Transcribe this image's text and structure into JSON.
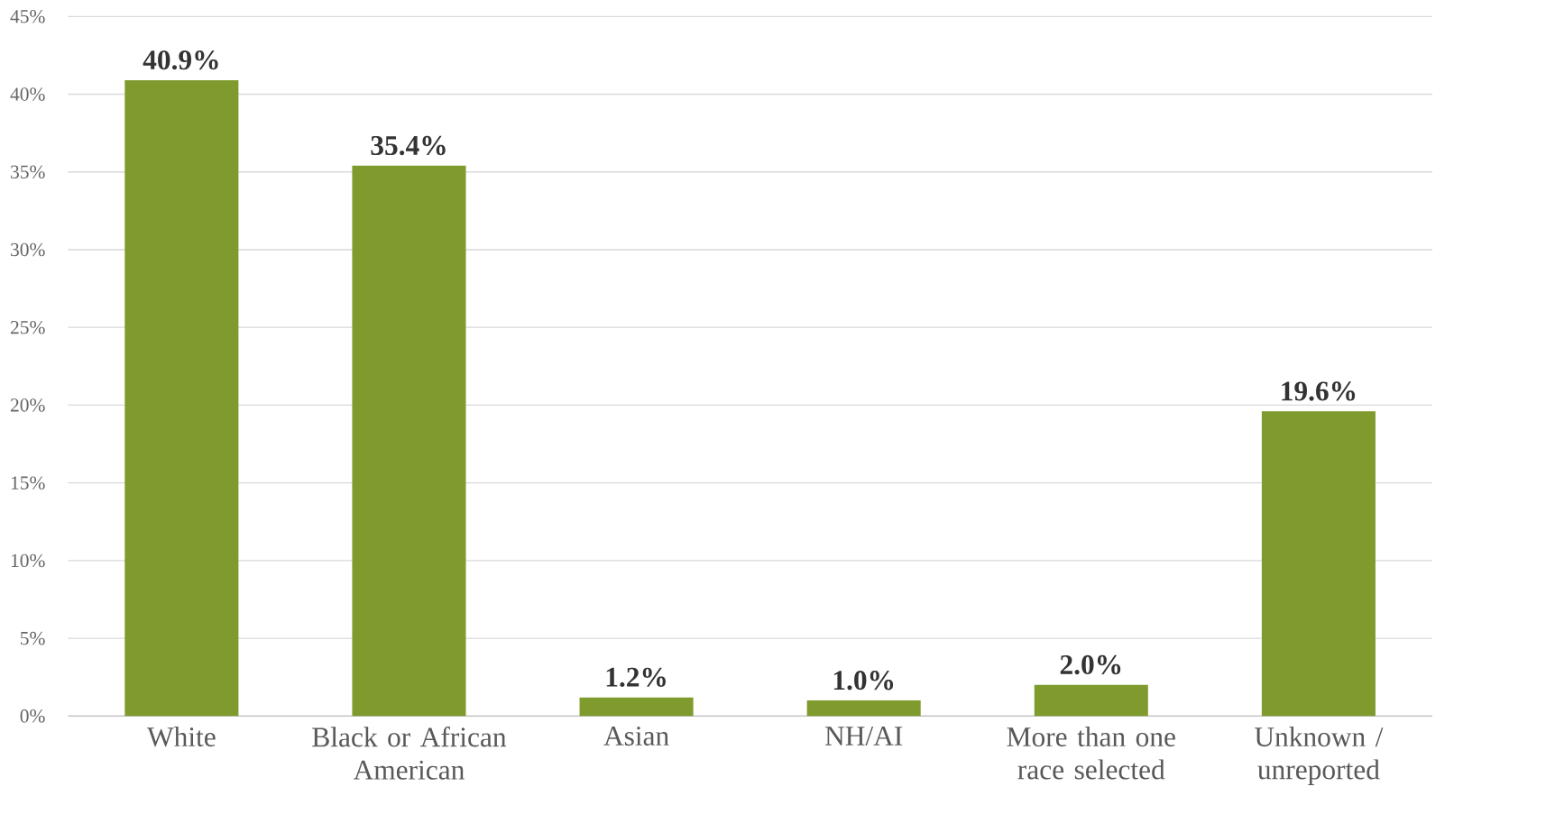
{
  "chart_data": {
    "type": "bar",
    "categories": [
      "White",
      "Black or African American",
      "Asian",
      "NH/AI",
      "More than one race selected",
      "Unknown / unreported"
    ],
    "values": [
      40.9,
      35.4,
      1.2,
      1.0,
      2.0,
      19.6
    ],
    "value_labels": [
      "40.9%",
      "35.4%",
      "1.2%",
      "1.0%",
      "2.0%",
      "19.6%"
    ],
    "color": "#7f9a2d",
    "ylim": [
      0,
      45
    ],
    "yticks": [
      {
        "value": 0,
        "label": "0%"
      },
      {
        "value": 5,
        "label": "5%"
      },
      {
        "value": 10,
        "label": "10%"
      },
      {
        "value": 15,
        "label": "15%"
      },
      {
        "value": 20,
        "label": "20%"
      },
      {
        "value": 25,
        "label": "25%"
      },
      {
        "value": 30,
        "label": "30%"
      },
      {
        "value": 35,
        "label": "35%"
      },
      {
        "value": 40,
        "label": "40%"
      },
      {
        "value": 45,
        "label": "45%"
      }
    ],
    "grid": "y"
  }
}
